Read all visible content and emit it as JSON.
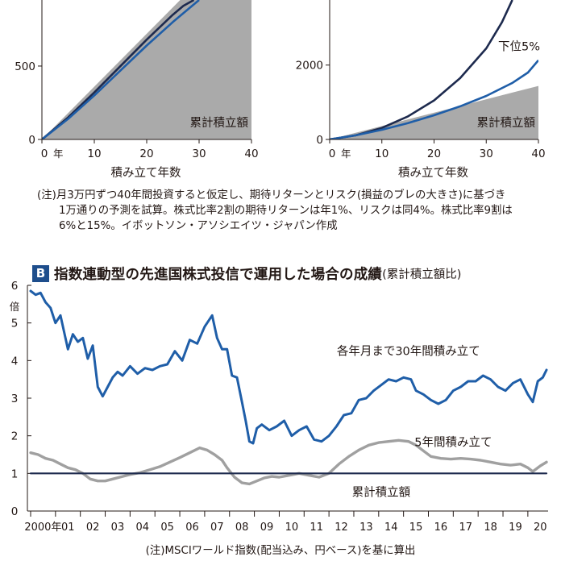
{
  "note_a": {
    "lines": [
      "(注)月3万円ずつ40年間投資すると仮定し、期待リターンとリスク(損益のブレの大きさ)に基づき",
      "1万通りの予測を試算。株式比率2割の期待リターンは年1%、リスクは同4%。株式比率9割は",
      "6%と15%。イボットソン・アソシエイツ・ジャパン作成"
    ]
  },
  "panel_b": {
    "badge": "B",
    "title": "指数連動型の先進国株式投信で運用した場合の成績",
    "subtitle": "(累計積立額比)",
    "note": "(注)MSCIワールド指数(配当込み、円ベース)を基に算出"
  },
  "colors": {
    "navy": "#1d2a4e",
    "blue": "#1f5ea8",
    "gray_line": "#a0a0a0",
    "gray_fill": "#aaaaaa",
    "text": "#231815"
  },
  "chart_data": [
    {
      "type": "area",
      "xlabel": "積み立て年数",
      "x_tick_labels": [
        "0",
        "10",
        "20",
        "30",
        "40"
      ],
      "x_first_suffix": "年",
      "xlim": [
        0,
        40
      ],
      "y_tick_labels": [
        "0",
        "500"
      ],
      "ylim": [
        0,
        950
      ],
      "area": {
        "name": "累計積立額",
        "x": [
          0,
          40
        ],
        "y": [
          0,
          1440
        ]
      },
      "series": [
        {
          "x": [
            0,
            5,
            10,
            15,
            20,
            25,
            27,
            29
          ],
          "y": [
            0,
            150,
            320,
            500,
            680,
            850,
            910,
            950
          ]
        },
        {
          "x": [
            0,
            5,
            10,
            15,
            20,
            25,
            28,
            30
          ],
          "y": [
            0,
            140,
            300,
            470,
            640,
            800,
            890,
            950
          ]
        }
      ]
    },
    {
      "type": "area",
      "xlabel": "積み立て年数",
      "x_tick_labels": [
        "0",
        "10",
        "20",
        "30",
        "40"
      ],
      "x_first_suffix": "年",
      "xlim": [
        0,
        40
      ],
      "y_tick_labels": [
        "0",
        "2000"
      ],
      "ylim": [
        0,
        3750
      ],
      "area": {
        "name": "累計積立額",
        "x": [
          0,
          40
        ],
        "y": [
          0,
          1440
        ]
      },
      "series": [
        {
          "x": [
            0,
            5,
            10,
            15,
            20,
            25,
            30,
            33,
            35
          ],
          "y": [
            0,
            110,
            310,
            620,
            1050,
            1650,
            2450,
            3150,
            3750
          ]
        },
        {
          "name": "下位5%",
          "x": [
            0,
            5,
            10,
            15,
            20,
            25,
            30,
            35,
            38,
            40
          ],
          "y": [
            0,
            110,
            260,
            440,
            650,
            890,
            1170,
            1520,
            1800,
            2130
          ]
        }
      ]
    },
    {
      "type": "line",
      "y_unit": "倍",
      "ylim": [
        0,
        6
      ],
      "y_tick_labels": [
        "0",
        "1",
        "2",
        "3",
        "4",
        "5",
        "6"
      ],
      "xlim": [
        2000,
        2020.75
      ],
      "x_tick_labels": [
        "2000年",
        "01",
        "02",
        "03",
        "04",
        "05",
        "06",
        "07",
        "08",
        "09",
        "10",
        "11",
        "12",
        "13",
        "14",
        "15",
        "16",
        "17",
        "18",
        "19",
        "20"
      ],
      "series": [
        {
          "name": "各年月まで30年間積み立て",
          "x": [
            2000.0,
            2000.2,
            2000.4,
            2000.6,
            2000.8,
            2001.0,
            2001.2,
            2001.5,
            2001.7,
            2001.9,
            2002.1,
            2002.3,
            2002.5,
            2002.7,
            2002.9,
            2003.1,
            2003.3,
            2003.5,
            2003.7,
            2004.0,
            2004.3,
            2004.6,
            2004.9,
            2005.2,
            2005.5,
            2005.8,
            2006.1,
            2006.4,
            2006.7,
            2007.0,
            2007.3,
            2007.5,
            2007.7,
            2007.9,
            2008.1,
            2008.3,
            2008.5,
            2008.65,
            2008.8,
            2008.95,
            2009.1,
            2009.3,
            2009.6,
            2009.9,
            2010.2,
            2010.5,
            2010.8,
            2011.1,
            2011.4,
            2011.7,
            2012.0,
            2012.3,
            2012.6,
            2012.9,
            2013.2,
            2013.5,
            2013.8,
            2014.1,
            2014.4,
            2014.7,
            2015.0,
            2015.3,
            2015.5,
            2015.8,
            2016.1,
            2016.4,
            2016.7,
            2017.0,
            2017.3,
            2017.6,
            2017.9,
            2018.2,
            2018.5,
            2018.8,
            2019.1,
            2019.4,
            2019.7,
            2020.0,
            2020.2,
            2020.4,
            2020.6,
            2020.75
          ],
          "y": [
            5.85,
            5.75,
            5.8,
            5.55,
            5.4,
            5.0,
            5.2,
            4.3,
            4.7,
            4.5,
            4.6,
            4.05,
            4.4,
            3.3,
            3.05,
            3.3,
            3.55,
            3.7,
            3.6,
            3.85,
            3.65,
            3.8,
            3.75,
            3.85,
            3.9,
            4.25,
            4.0,
            4.55,
            4.45,
            4.9,
            5.2,
            4.6,
            4.3,
            4.3,
            3.6,
            3.55,
            2.9,
            2.4,
            1.85,
            1.8,
            2.2,
            2.3,
            2.15,
            2.25,
            2.4,
            2.0,
            2.15,
            2.25,
            1.9,
            1.85,
            2.0,
            2.25,
            2.55,
            2.6,
            2.95,
            3.0,
            3.2,
            3.35,
            3.5,
            3.45,
            3.55,
            3.5,
            3.2,
            3.1,
            2.95,
            2.85,
            2.95,
            3.2,
            3.3,
            3.45,
            3.45,
            3.6,
            3.5,
            3.3,
            3.2,
            3.4,
            3.5,
            3.1,
            2.9,
            3.45,
            3.55,
            3.75
          ]
        },
        {
          "name": "5年間積み立て",
          "x": [
            2000.0,
            2000.3,
            2000.6,
            2000.9,
            2001.2,
            2001.5,
            2001.8,
            2002.1,
            2002.4,
            2002.7,
            2003.0,
            2003.3,
            2003.7,
            2004.0,
            2004.4,
            2004.8,
            2005.2,
            2005.6,
            2006.0,
            2006.4,
            2006.8,
            2007.1,
            2007.4,
            2007.7,
            2007.9,
            2008.2,
            2008.5,
            2008.8,
            2009.1,
            2009.4,
            2009.7,
            2010.0,
            2010.4,
            2010.8,
            2011.2,
            2011.6,
            2012.0,
            2012.4,
            2012.8,
            2013.2,
            2013.6,
            2014.0,
            2014.4,
            2014.8,
            2015.2,
            2015.5,
            2015.8,
            2016.1,
            2016.5,
            2016.9,
            2017.3,
            2017.7,
            2018.1,
            2018.5,
            2018.9,
            2019.3,
            2019.7,
            2020.0,
            2020.2,
            2020.5,
            2020.75
          ],
          "y": [
            1.55,
            1.5,
            1.4,
            1.35,
            1.25,
            1.15,
            1.1,
            1.0,
            0.85,
            0.8,
            0.8,
            0.85,
            0.92,
            0.97,
            1.02,
            1.1,
            1.18,
            1.3,
            1.42,
            1.55,
            1.68,
            1.62,
            1.5,
            1.35,
            1.15,
            0.9,
            0.75,
            0.72,
            0.8,
            0.88,
            0.92,
            0.9,
            0.95,
            1.0,
            0.95,
            0.9,
            1.0,
            1.25,
            1.45,
            1.62,
            1.75,
            1.82,
            1.85,
            1.88,
            1.85,
            1.75,
            1.6,
            1.45,
            1.4,
            1.38,
            1.4,
            1.38,
            1.35,
            1.3,
            1.25,
            1.22,
            1.25,
            1.15,
            1.05,
            1.2,
            1.3
          ]
        },
        {
          "name": "累計積立額",
          "x": [
            2000,
            2020.75
          ],
          "y": [
            1.0,
            1.0
          ]
        }
      ]
    }
  ]
}
